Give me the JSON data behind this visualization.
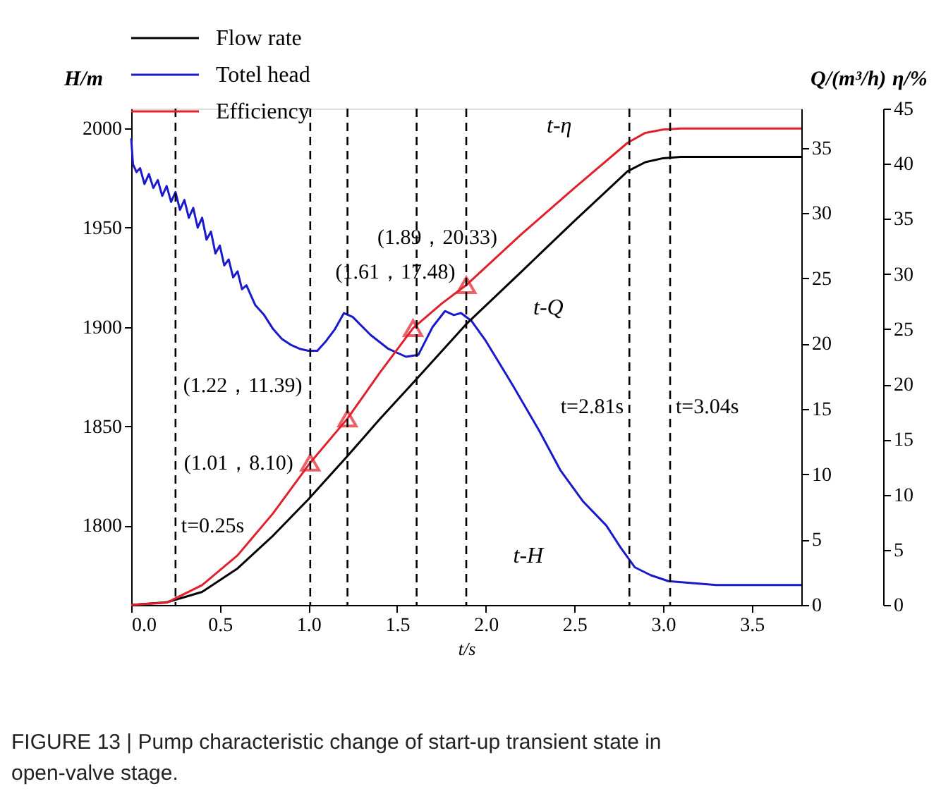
{
  "chart_data": {
    "type": "line",
    "xlabel": "t/s",
    "ylabel": "H/m",
    "y2label": "Q/(m³/h)",
    "y3label": "η/%",
    "xlim": [
      0,
      3.78
    ],
    "xticks": [
      {
        "value": 0,
        "label": "0.0"
      },
      {
        "value": 0.5,
        "label": "0.5"
      },
      {
        "value": 1,
        "label": "1.0"
      },
      {
        "value": 1.5,
        "label": "1.5"
      },
      {
        "value": 2,
        "label": "2.0"
      },
      {
        "value": 2.5,
        "label": "2.5"
      },
      {
        "value": 3,
        "label": "3.0"
      },
      {
        "value": 3.5,
        "label": "3.5"
      }
    ],
    "ylim": [
      1760,
      2010
    ],
    "yticks": [
      1800,
      1850,
      1900,
      1950,
      2000
    ],
    "y2lim": [
      0,
      38
    ],
    "y2ticks": [
      0,
      5,
      10,
      15,
      20,
      25,
      30,
      35
    ],
    "y3lim": [
      0,
      45
    ],
    "y3ticks": [
      0,
      5,
      10,
      15,
      20,
      25,
      30,
      35,
      40,
      45
    ],
    "grid": false,
    "legend": "top left",
    "series": [
      {
        "name": "Flow rate",
        "color": "#000000",
        "axis": "y2",
        "x": [
          0,
          0.2,
          0.4,
          0.6,
          0.8,
          1.0,
          1.22,
          1.4,
          1.61,
          1.89,
          2.2,
          2.5,
          2.8,
          2.9,
          3.0,
          3.1,
          3.78
        ],
        "values": [
          0,
          0.2,
          1.0,
          2.8,
          5.3,
          8.1,
          11.4,
          14.2,
          17.3,
          21.5,
          25.5,
          29.4,
          33.2,
          33.9,
          34.2,
          34.3,
          34.3
        ]
      },
      {
        "name": "Totel head",
        "color": "#1a1acc",
        "axis": "y",
        "x": [
          0,
          0.01,
          0.03,
          0.05,
          0.075,
          0.1,
          0.125,
          0.15,
          0.175,
          0.2,
          0.225,
          0.25,
          0.275,
          0.3,
          0.325,
          0.35,
          0.375,
          0.4,
          0.425,
          0.45,
          0.475,
          0.5,
          0.525,
          0.55,
          0.575,
          0.6,
          0.625,
          0.65,
          0.7,
          0.75,
          0.8,
          0.85,
          0.9,
          0.95,
          1.0,
          1.05,
          1.1,
          1.15,
          1.2,
          1.25,
          1.35,
          1.45,
          1.55,
          1.62,
          1.7,
          1.77,
          1.82,
          1.86,
          1.92,
          2.0,
          2.15,
          2.3,
          2.42,
          2.55,
          2.68,
          2.76,
          2.84,
          2.93,
          3.03,
          3.3,
          3.78
        ],
        "values": [
          1995,
          1982,
          1978,
          1980,
          1972,
          1977,
          1970,
          1974,
          1966,
          1971,
          1963,
          1968,
          1959,
          1964,
          1955,
          1960,
          1950,
          1955,
          1944,
          1948,
          1937,
          1941,
          1931,
          1934,
          1925,
          1928,
          1919,
          1921,
          1911,
          1906,
          1899,
          1894,
          1891,
          1889,
          1888,
          1888,
          1893,
          1899,
          1907,
          1905,
          1896,
          1889,
          1885,
          1886,
          1900,
          1908,
          1906,
          1907,
          1903,
          1893,
          1871,
          1848,
          1828,
          1812,
          1800,
          1789,
          1779,
          1775,
          1772,
          1770,
          1770
        ]
      },
      {
        "name": "Efficiency",
        "color": "#e0202a",
        "axis": "y3",
        "x": [
          0,
          0.2,
          0.4,
          0.6,
          0.8,
          1.01,
          1.22,
          1.4,
          1.59,
          1.75,
          1.89,
          2.2,
          2.5,
          2.8,
          2.9,
          3.0,
          3.1,
          3.78
        ],
        "values": [
          0,
          0.2,
          1.8,
          4.5,
          8.3,
          12.9,
          16.9,
          21.0,
          25.1,
          27.3,
          29.0,
          33.6,
          37.8,
          41.9,
          42.8,
          43.1,
          43.2,
          43.2
        ]
      },
      {
        "type": "scatter",
        "color": "#e0202a",
        "axis": "y3",
        "marker": "triangle",
        "x": [
          1.01,
          1.22,
          1.59,
          1.89
        ],
        "values": [
          12.9,
          16.9,
          25.1,
          29.0
        ]
      }
    ],
    "ref_lines": [
      {
        "axis": "x",
        "value": 0.25,
        "label": "t=0.25s",
        "line_style": "dashed",
        "color": "#000000"
      },
      {
        "axis": "x",
        "value": 1.01,
        "line_style": "dashed",
        "color": "#000000"
      },
      {
        "axis": "x",
        "value": 1.22,
        "line_style": "dashed",
        "color": "#000000"
      },
      {
        "axis": "x",
        "value": 1.61,
        "line_style": "dashed",
        "color": "#000000"
      },
      {
        "axis": "x",
        "value": 1.89,
        "line_style": "dashed",
        "color": "#000000"
      },
      {
        "axis": "x",
        "value": 2.81,
        "label": "t=2.81s",
        "line_style": "dashed",
        "color": "#000000"
      },
      {
        "axis": "x",
        "value": 3.04,
        "label": "t=3.04s",
        "line_style": "dashed",
        "color": "#000000"
      }
    ],
    "annotations": [
      "(1.01，8.10)",
      "(1.22，11.39)",
      "(1.61，17.48)",
      "(1.89，20.33)",
      "t-η",
      "t-Q",
      "t-H",
      "FIGURE 13 | Pump characteristic change of start-up transient state in open-valve stage."
    ]
  }
}
